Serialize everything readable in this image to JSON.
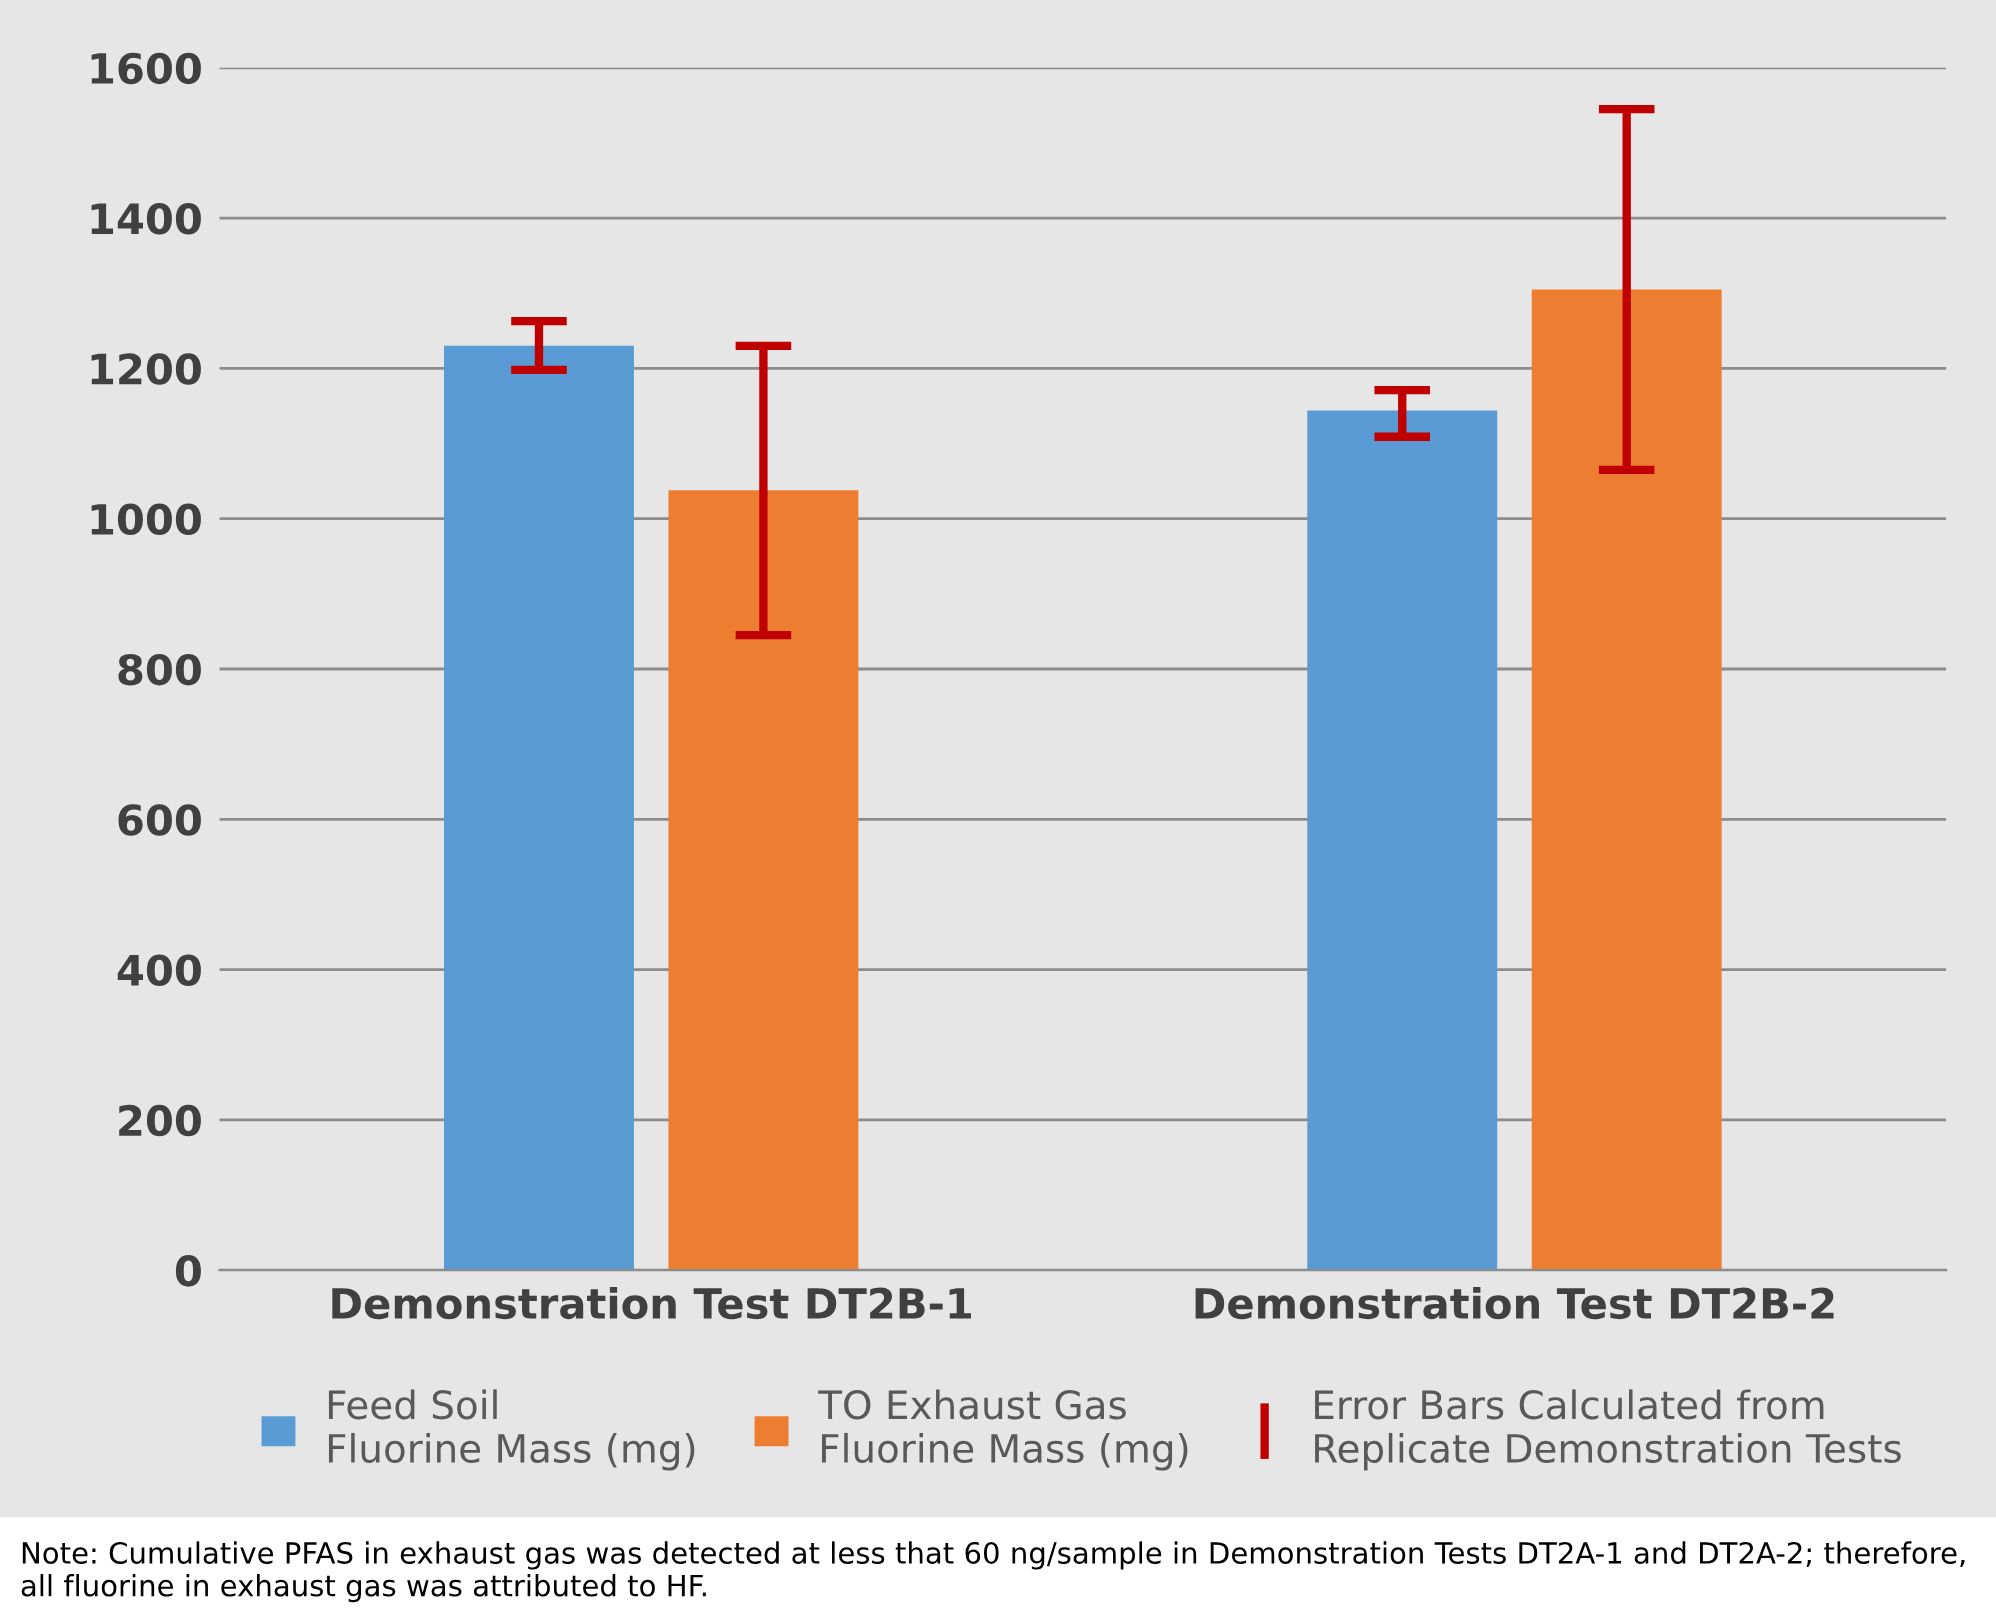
{
  "chart_data": {
    "type": "bar",
    "categories": [
      "Demonstration Test DT2B-1",
      "Demonstration Test DT2B-2"
    ],
    "series": [
      {
        "name": "Feed Soil Fluorine Mass (mg)",
        "color": "#5b9bd5",
        "values": [
          1230,
          1144
        ],
        "errors": [
          [
            1198,
            1263
          ],
          [
            1109,
            1171
          ]
        ]
      },
      {
        "name": "TO Exhaust Gas Fluorine Mass (mg)",
        "color": "#ed7d31",
        "values": [
          1038,
          1305
        ],
        "errors": [
          [
            845,
            1230
          ],
          [
            1065,
            1545
          ]
        ]
      }
    ],
    "ylim": [
      0,
      1600
    ],
    "yticks": [
      0,
      200,
      400,
      600,
      800,
      1000,
      1200,
      1400,
      1600
    ],
    "grid": "y",
    "legend": "bottom",
    "annotations": [
      "Error Bars Calculated from Replicate Demonstration Tests",
      "Note: Cumulative PFAS in exhaust gas was detected at less that 60 ng/sample in Demonstration Tests DT2A-1 and DT2A-2; therefore, all fluorine in exhaust gas was attributed to HF."
    ]
  }
}
